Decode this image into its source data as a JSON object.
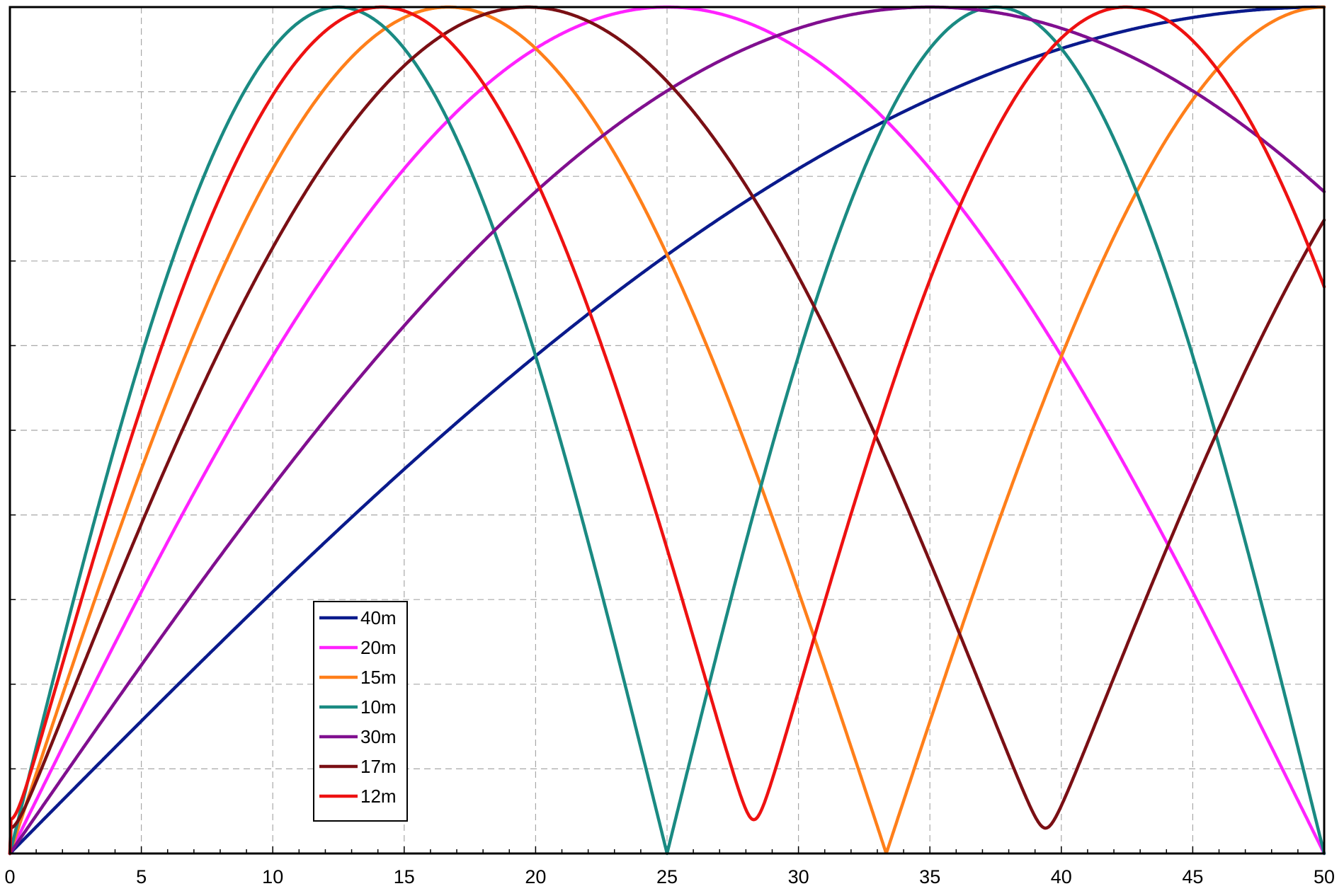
{
  "chart_data": {
    "type": "line",
    "title": "",
    "xlabel": "",
    "ylabel": "",
    "xlim": [
      0,
      50
    ],
    "ylim": [
      0,
      1
    ],
    "x_ticks": [
      0,
      5,
      10,
      15,
      20,
      25,
      30,
      35,
      40,
      45,
      50
    ],
    "x_tick_labels": [
      "0",
      "5",
      "10",
      "15",
      "20",
      "25",
      "30",
      "35",
      "40",
      "45",
      "50"
    ],
    "y_ticks_labeled": false,
    "grid": true,
    "legend_position": "bottom-left",
    "curve_shape": "abs(sin(pi*x/(2*xpeak))) with minimum level",
    "series": [
      {
        "name": "40m",
        "color": "#0a1a8c",
        "first_peak_x": 50.0,
        "min_level": 0.0
      },
      {
        "name": "20m",
        "color": "#ff22ff",
        "first_peak_x": 25.0,
        "min_level": 0.0
      },
      {
        "name": "15m",
        "color": "#ff7f1a",
        "first_peak_x": 16.67,
        "min_level": 0.0
      },
      {
        "name": "10m",
        "color": "#1a8a82",
        "first_peak_x": 12.5,
        "min_level": 0.0
      },
      {
        "name": "30m",
        "color": "#800f8f",
        "first_peak_x": 35.0,
        "min_level": 0.0
      },
      {
        "name": "17m",
        "color": "#7a0f14",
        "first_peak_x": 19.7,
        "min_level": 0.03
      },
      {
        "name": "12m",
        "color": "#ee1111",
        "first_peak_x": 14.15,
        "min_level": 0.04
      }
    ]
  }
}
